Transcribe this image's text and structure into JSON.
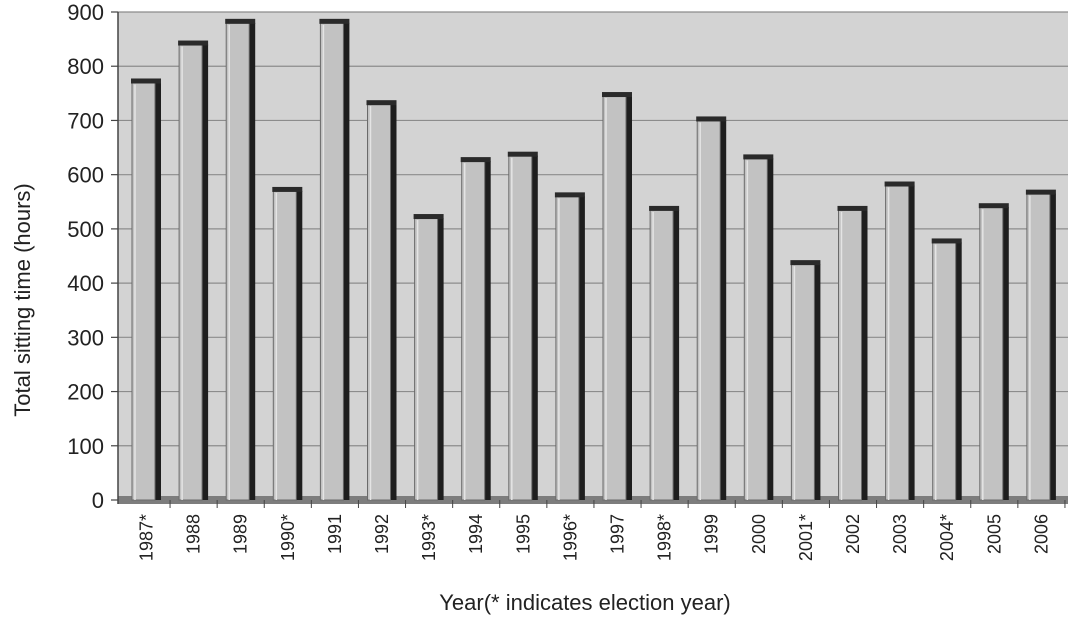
{
  "chart_data": {
    "type": "bar",
    "title": "",
    "xlabel": "Year(* indicates election year)",
    "ylabel": "Total sitting time (hours)",
    "ylim": [
      0,
      900
    ],
    "yticks": [
      0,
      100,
      200,
      300,
      400,
      500,
      600,
      700,
      800,
      900
    ],
    "grid": true,
    "categories": [
      "1987*",
      "1988",
      "1989",
      "1990*",
      "1991",
      "1992",
      "1993*",
      "1994",
      "1995",
      "1996*",
      "1997",
      "1998*",
      "1999",
      "2000",
      "2001*",
      "2002",
      "2003",
      "2004*",
      "2005",
      "2006"
    ],
    "values": [
      770,
      840,
      880,
      570,
      880,
      730,
      520,
      625,
      635,
      560,
      745,
      535,
      700,
      630,
      435,
      535,
      580,
      475,
      540,
      565
    ]
  },
  "colors": {
    "plot_background": "#d3d3d3",
    "bar_face": "#c2c2c2",
    "bar_side": "#1e1e1e",
    "bar_top": "#2a2a2a",
    "gridline": "#8c8c8c",
    "floor": "#7d7d7d"
  }
}
